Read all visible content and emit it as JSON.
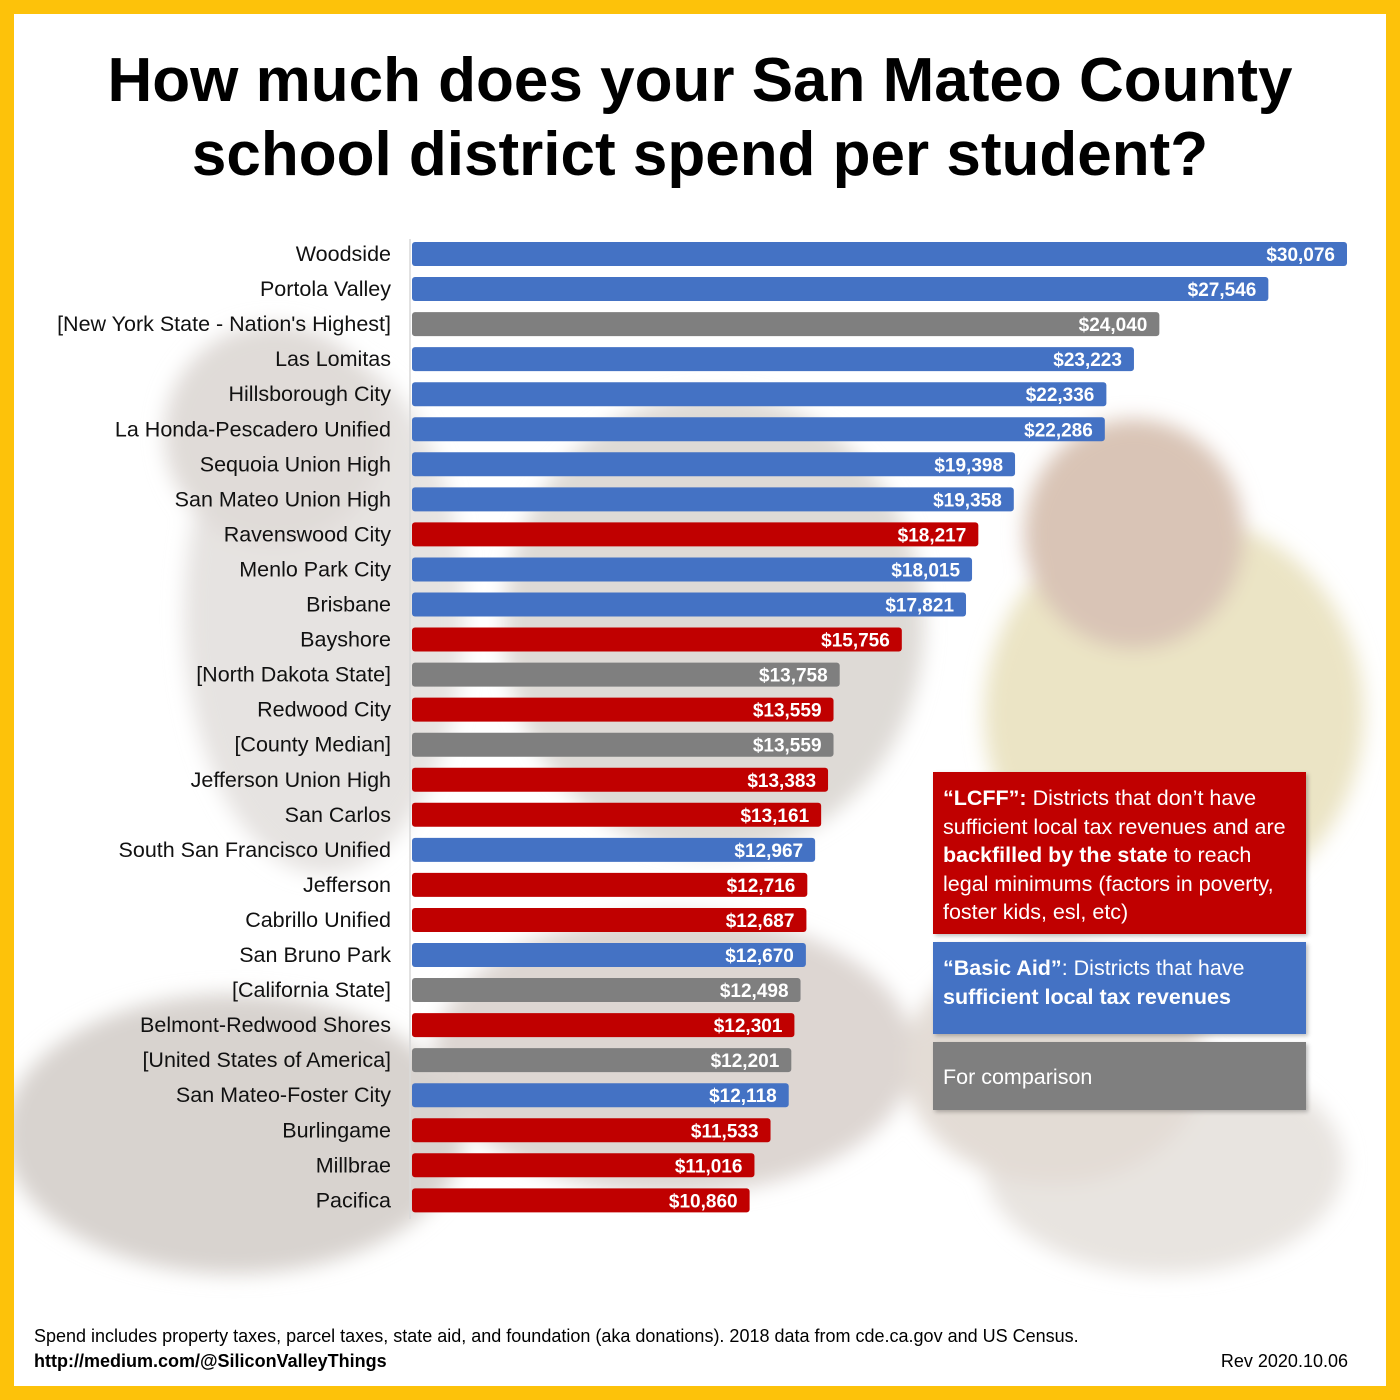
{
  "title": {
    "line1": "How much does your San Mateo County",
    "line2": "school district spend per student?"
  },
  "colors": {
    "lcff": "#c00000",
    "basic_aid": "#4472c4",
    "comparison": "#7f7f7f",
    "frame": "#fdc20a"
  },
  "chart_data": {
    "type": "bar",
    "orientation": "horizontal",
    "title": "How much does your San Mateo County school district spend per student?",
    "xlabel": "",
    "ylabel": "",
    "xlim": [
      0,
      30076
    ],
    "grid": false,
    "categories": [
      "Woodside",
      "Portola Valley",
      "[New York State - Nation's Highest]",
      "Las Lomitas",
      "Hillsborough City",
      "La Honda-Pescadero Unified",
      "Sequoia Union High",
      "San Mateo Union High",
      "Ravenswood City",
      "Menlo Park City",
      "Brisbane",
      "Bayshore",
      "[North Dakota State]",
      "Redwood City",
      "[County Median]",
      "Jefferson Union High",
      "San Carlos",
      "South San Francisco Unified",
      "Jefferson",
      "Cabrillo Unified",
      "San Bruno Park",
      "[California State]",
      "Belmont-Redwood Shores",
      "[United States of America]",
      "San Mateo-Foster City",
      "Burlingame",
      "Millbrae",
      "Pacifica"
    ],
    "values": [
      30076,
      27546,
      24040,
      23223,
      22336,
      22286,
      19398,
      19358,
      18217,
      18015,
      17821,
      15756,
      13758,
      13559,
      13559,
      13383,
      13161,
      12967,
      12716,
      12687,
      12670,
      12498,
      12301,
      12201,
      12118,
      11533,
      11016,
      10860
    ],
    "value_labels": [
      "$30,076",
      "$27,546",
      "$24,040",
      "$23,223",
      "$22,336",
      "$22,286",
      "$19,398",
      "$19,358",
      "$18,217",
      "$18,015",
      "$17,821",
      "$15,756",
      "$13,758",
      "$13,559",
      "$13,559",
      "$13,383",
      "$13,161",
      "$12,967",
      "$12,716",
      "$12,687",
      "$12,670",
      "$12,498",
      "$12,301",
      "$12,201",
      "$12,118",
      "$11,533",
      "$11,016",
      "$10,860"
    ],
    "groups": [
      "basic_aid",
      "basic_aid",
      "comparison",
      "basic_aid",
      "basic_aid",
      "basic_aid",
      "basic_aid",
      "basic_aid",
      "lcff",
      "basic_aid",
      "basic_aid",
      "lcff",
      "comparison",
      "lcff",
      "comparison",
      "lcff",
      "lcff",
      "basic_aid",
      "lcff",
      "lcff",
      "basic_aid",
      "comparison",
      "lcff",
      "comparison",
      "basic_aid",
      "lcff",
      "lcff",
      "lcff"
    ],
    "legend_placement": "bottom-right"
  },
  "legend": {
    "lcff": {
      "term": "“LCFF”:",
      "text1": " Districts that don’t have sufficient local tax revenues and are ",
      "emphasis": "backfilled by the state",
      "text2": " to reach legal minimums (factors in poverty, foster kids, esl, etc)"
    },
    "basic_aid": {
      "term": "“Basic Aid”",
      "text1": ": Districts that have ",
      "emphasis": "sufficient local tax revenues"
    },
    "comparison": {
      "text": "For comparison"
    }
  },
  "footer": {
    "note": "Spend includes property taxes, parcel taxes, state aid, and foundation (aka donations). 2018 data from cde.ca.gov and US Census.",
    "link": "http://medium.com/@SiliconValleyThings",
    "revision": "Rev 2020.10.06"
  }
}
